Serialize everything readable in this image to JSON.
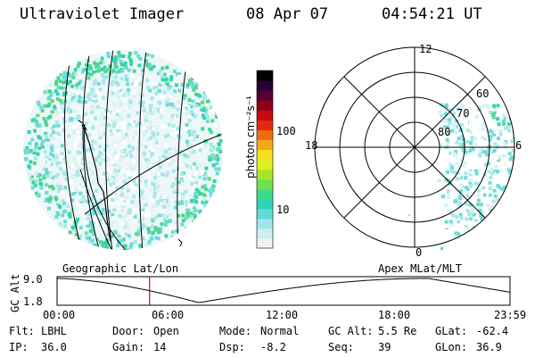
{
  "header": {
    "instrument": "Ultraviolet Imager",
    "date": "08 Apr 07",
    "time": "04:54:21 UT"
  },
  "colorbar": {
    "unit_label": "photon cm⁻²s⁻¹",
    "ticks": [
      "100",
      "10"
    ],
    "colors": [
      "#f2f2f2",
      "#cdeff2",
      "#9fe6ea",
      "#5fdbd8",
      "#2fd3b8",
      "#3fd98a",
      "#6fe04f",
      "#a8e62a",
      "#e0ee20",
      "#f5e020",
      "#f5a818",
      "#f06a12",
      "#e02a10",
      "#c40a10",
      "#8e0018",
      "#5a0030",
      "#2a0038",
      "#000000"
    ]
  },
  "left_panel": {
    "caption": "Geographic Lat/Lon"
  },
  "right_panel": {
    "caption": "Apex MLat/MLT",
    "mlt_labels": {
      "top": "12",
      "left": "18",
      "right": "6",
      "bottom": "0"
    },
    "lat_labels": [
      "60",
      "70",
      "80"
    ]
  },
  "altitude_plot": {
    "ylabel": "GC Alt",
    "yticks": [
      "9.0",
      "1.8"
    ],
    "xticks": [
      "00:00",
      "06:00",
      "12:00",
      "18:00",
      "23:59"
    ],
    "marker_time_hours": 4.9
  },
  "info": {
    "flt_label": "Flt:",
    "flt_value": "LBHL",
    "door_label": "Door:",
    "door_value": "Open",
    "mode_label": "Mode:",
    "mode_value": "Normal",
    "gcalt_label": "GC Alt:",
    "gcalt_value": "5.5 Re",
    "glat_label": "GLat:",
    "glat_value": "-62.4",
    "ip_label": "IP:",
    "ip_value": "36.0",
    "gain_label": "Gain:",
    "gain_value": "14",
    "dsp_label": "Dsp:",
    "dsp_value": "-8.2",
    "seq_label": "Seq:",
    "seq_value": "39",
    "glon_label": "GLon:",
    "glon_value": "36.9"
  }
}
